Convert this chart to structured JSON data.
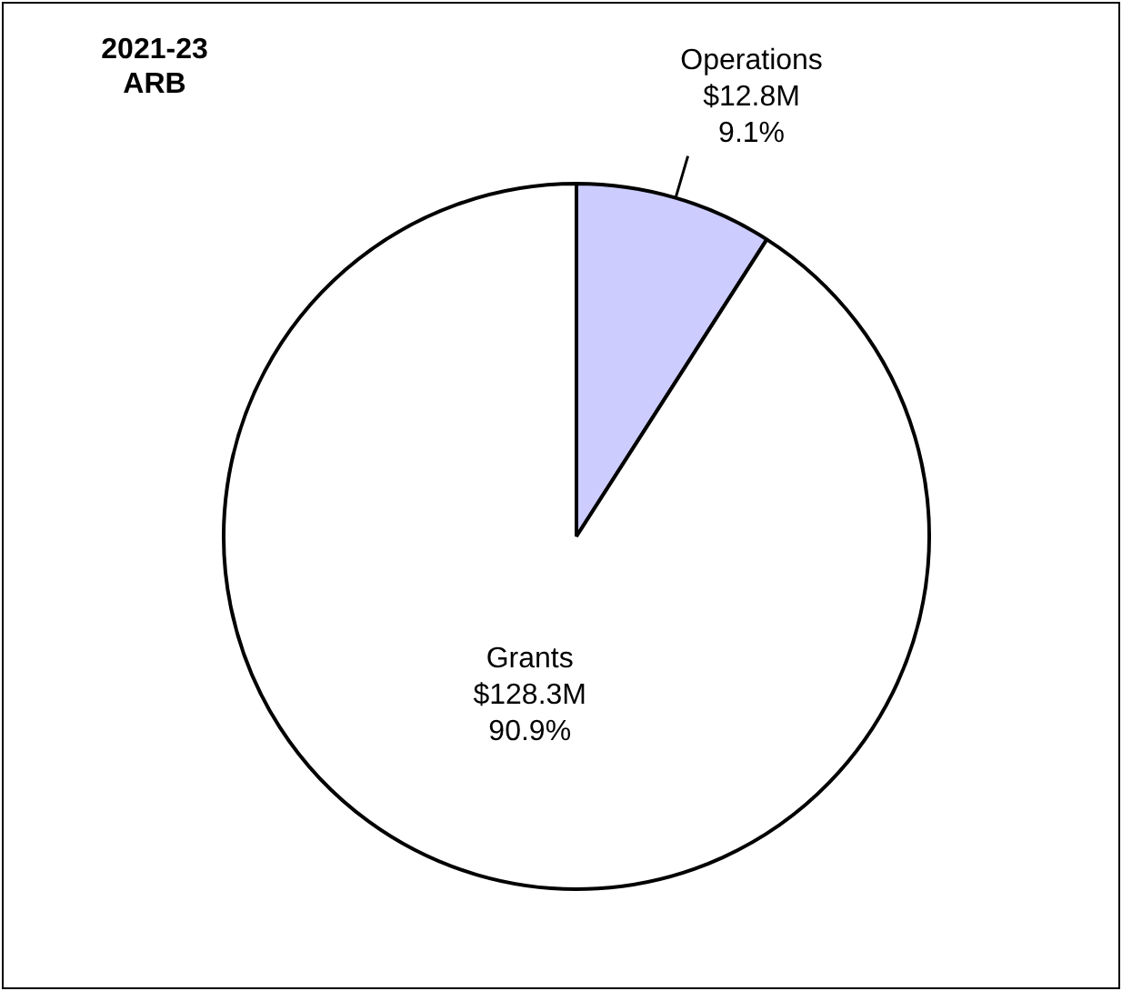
{
  "chart_data": {
    "type": "pie",
    "title": "2021-23\nARB",
    "categories": [
      "Operations",
      "Grants"
    ],
    "values": [
      12.8,
      128.3
    ],
    "colors": [
      "#ccccff",
      "#ffffff"
    ],
    "value_labels": [
      "$12.8M",
      "$128.3M"
    ],
    "annotations": [
      {
        "text": "9.1%",
        "x": "Operations"
      },
      {
        "text": "90.9%",
        "x": "Grants"
      }
    ],
    "legend": false
  }
}
